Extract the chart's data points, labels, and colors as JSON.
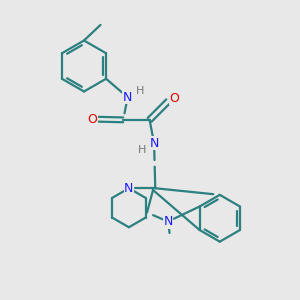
{
  "bg_color": "#e8e8e8",
  "bond_color": "#2d8080",
  "N_color": "#1a1aff",
  "O_color": "#dd0000",
  "H_color": "#777777",
  "line_width": 1.6,
  "figsize": [
    3.0,
    3.0
  ],
  "dpi": 100,
  "xlim": [
    0,
    10
  ],
  "ylim": [
    0,
    10
  ]
}
